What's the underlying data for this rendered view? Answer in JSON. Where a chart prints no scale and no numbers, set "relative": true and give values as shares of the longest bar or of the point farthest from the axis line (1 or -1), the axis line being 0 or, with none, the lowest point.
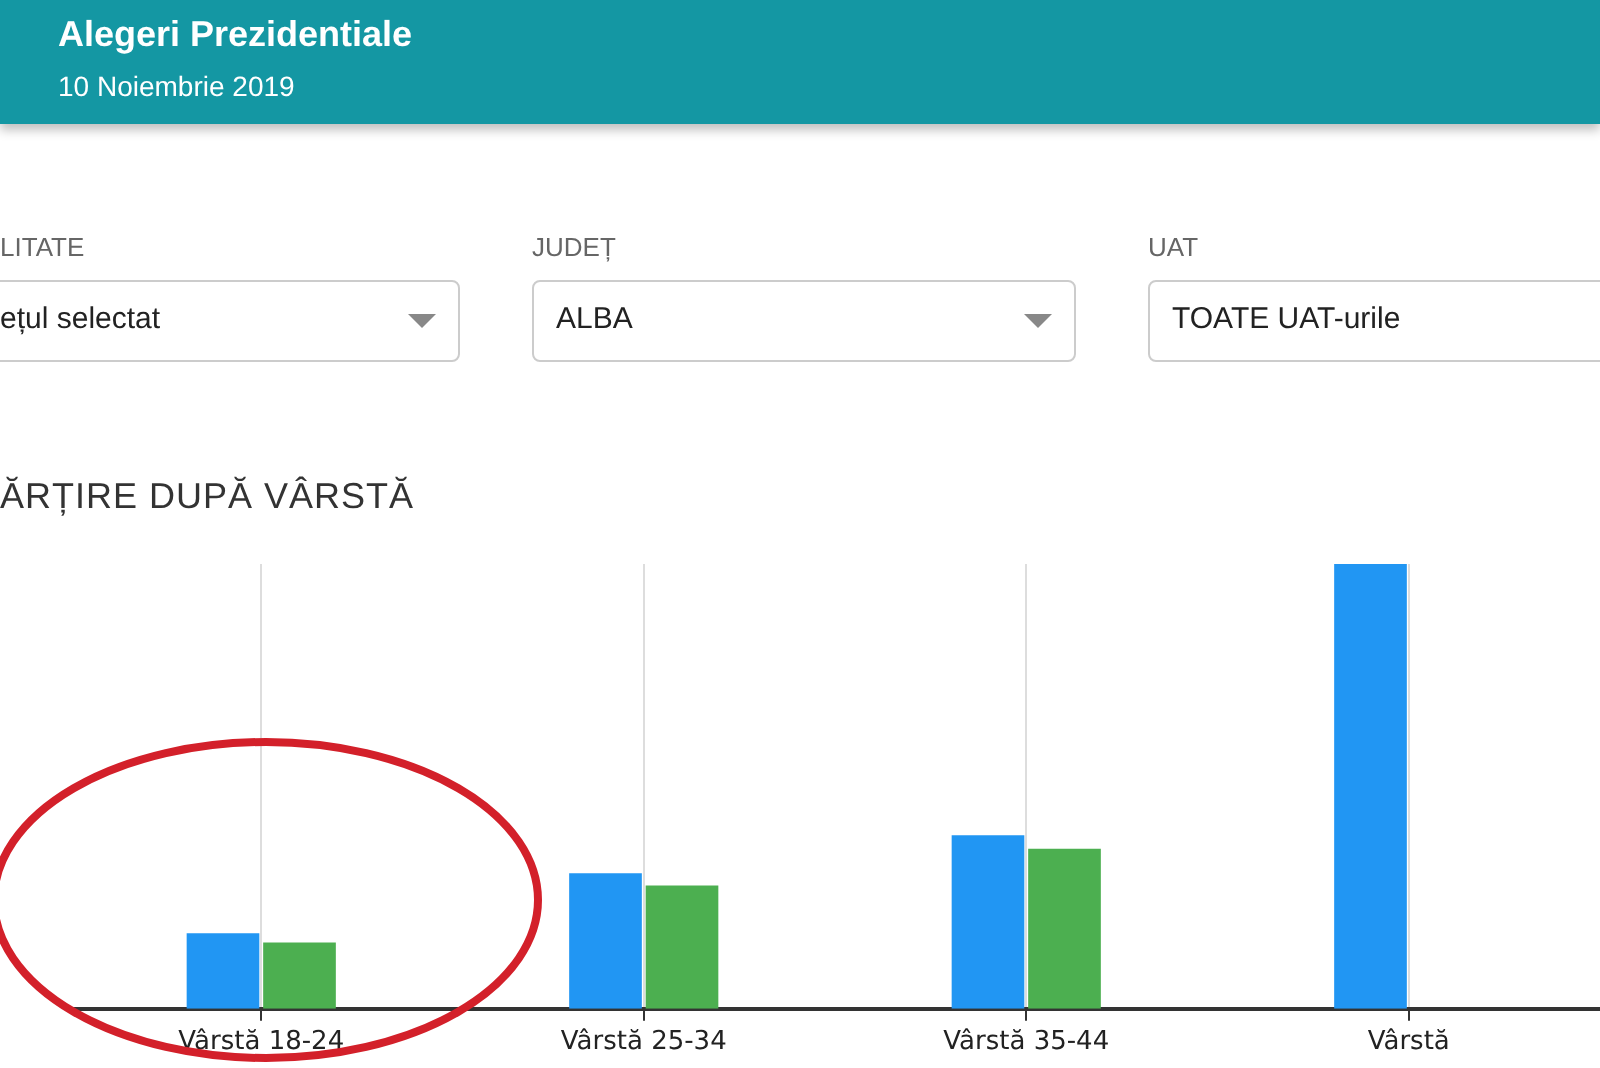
{
  "chart_data": {
    "type": "bar",
    "title": "Alegeri Prezidentiale",
    "subtitle": "10 Noiembrie 2019",
    "annotations": [
      "LITATE",
      "ețul selectat",
      "JUDEȚ",
      "ALBA",
      "UAT",
      "TOATE UAT-urile",
      "ĂRȚIRE DUPĂ VÂRSTĂ"
    ],
    "categories": [
      "Vârstă 18-24",
      "Vârstă 25-34",
      "Vârstă 35-44",
      "Vârstă"
    ],
    "relative": true,
    "series": [
      {
        "color": "#2196f3",
        "values": [
          0.17,
          0.305,
          0.39,
          1
        ]
      },
      {
        "color": "#4caf50",
        "values": [
          0.149,
          0.277,
          0.36,
          null
        ]
      }
    ],
    "grid": "x",
    "legend": false
  }
}
